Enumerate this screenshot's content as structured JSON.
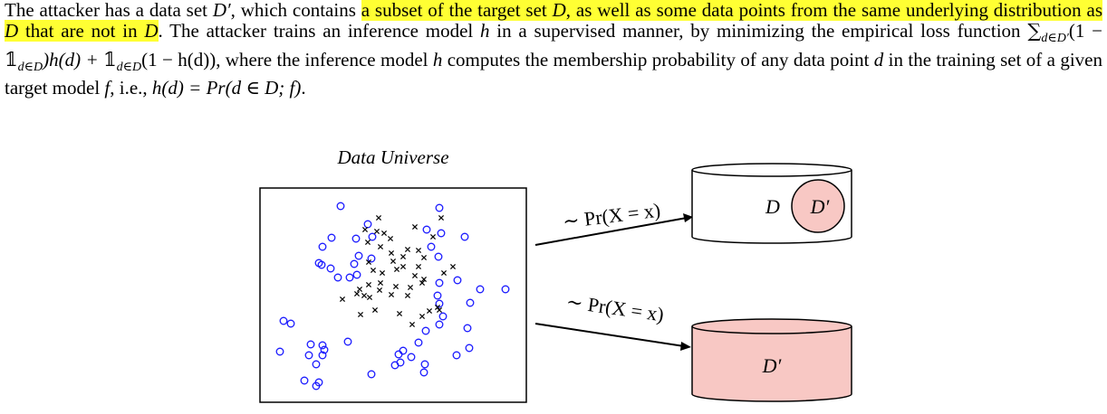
{
  "paragraph": {
    "s1": "The attacker has a data set ",
    "Dprime": "D′",
    "s2": ", which contains ",
    "hl1": "a subset of the target set ",
    "hlD1": "D",
    "hl2": ", as well as some data points from the same underlying distribution as ",
    "hlD2": "D",
    "hl3": " that are not in ",
    "hlD3": "D",
    "s3": ". The attacker trains an inference model ",
    "h1": "h",
    "s4": " in a supervised manner, by minimizing the empirical loss function ",
    "sum": "∑",
    "sum_sub": "d∈D′",
    "loss1": "(1 − ",
    "ind": "𝟙",
    "ind_sub": "d∈D",
    "loss2": ")h(d) + ",
    "ind2": "𝟙",
    "ind2_sub": "d∈D",
    "loss3": "(1 − h(d))",
    "s5": ", where the inference model ",
    "h2": "h",
    "s6": " computes the membership probability of any data point ",
    "d1": "d",
    "s7": " in the training set of a given target model ",
    "f1": "f",
    "s8": ", i.e., ",
    "eq": "h(d) = Pr(d ∈ D; f)",
    "s9": "."
  },
  "figure": {
    "universe_label": "Data Universe",
    "arrow_top_label": "∼ Pr(X = x)",
    "arrow_bottom_label": "∼ Pr(X = x)",
    "top_cylinder_outer": "D",
    "top_cylinder_inner": "D′",
    "bottom_cylinder_label": "D′",
    "colors": {
      "circle": "#1a1aff",
      "highlight": "#ffff33",
      "cylinder_fill": "#f8c8c4"
    }
  }
}
